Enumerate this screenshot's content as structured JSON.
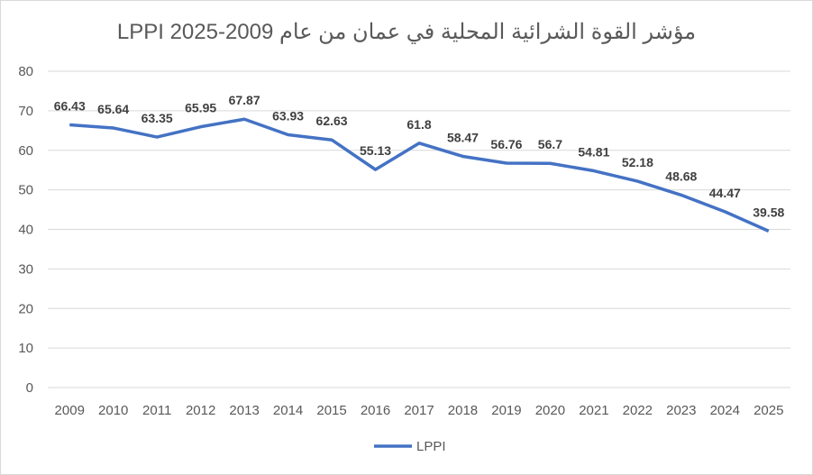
{
  "chart_data": {
    "type": "line",
    "title": "LPPI 2025-2009 مؤشر القوة الشرائية المحلية في عمان من عام",
    "categories": [
      "2009",
      "2010",
      "2011",
      "2012",
      "2013",
      "2014",
      "2015",
      "2016",
      "2017",
      "2018",
      "2019",
      "2020",
      "2021",
      "2022",
      "2023",
      "2024",
      "2025"
    ],
    "series": [
      {
        "name": "LPPI",
        "color": "#4472c4",
        "values": [
          66.43,
          65.64,
          63.35,
          65.95,
          67.87,
          63.93,
          62.63,
          55.13,
          61.8,
          58.47,
          56.76,
          56.7,
          54.81,
          52.18,
          48.68,
          44.47,
          39.58
        ],
        "labels": [
          "66.43",
          "65.64",
          "63.35",
          "65.95",
          "67.87",
          "63.93",
          "62.63",
          "55.13",
          "61.8",
          "58.47",
          "56.76",
          "56.7",
          "54.81",
          "52.18",
          "48.68",
          "44.47",
          "39.58"
        ]
      }
    ],
    "yticks": [
      "0",
      "10",
      "20",
      "30",
      "40",
      "50",
      "60",
      "70",
      "80"
    ],
    "ylim": [
      0,
      80
    ],
    "grid": true,
    "legend": "bottom"
  }
}
